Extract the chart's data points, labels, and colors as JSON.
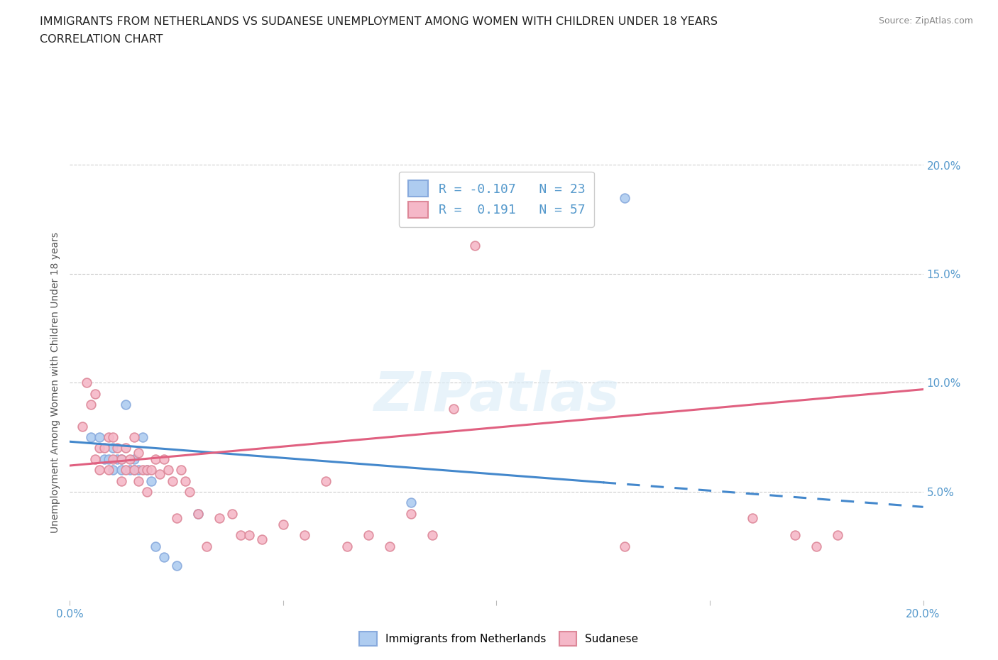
{
  "title_line1": "IMMIGRANTS FROM NETHERLANDS VS SUDANESE UNEMPLOYMENT AMONG WOMEN WITH CHILDREN UNDER 18 YEARS",
  "title_line2": "CORRELATION CHART",
  "source": "Source: ZipAtlas.com",
  "ylabel": "Unemployment Among Women with Children Under 18 years",
  "xlim": [
    0.0,
    0.2
  ],
  "ylim": [
    0.0,
    0.2
  ],
  "xticks": [
    0.0,
    0.05,
    0.1,
    0.15,
    0.2
  ],
  "yticks": [
    0.05,
    0.1,
    0.15,
    0.2
  ],
  "watermark": "ZIPatlas",
  "legend_r1": "R = -0.107   N = 23",
  "legend_r2": "R =  0.191   N = 57",
  "netherlands_color": "#aeccf0",
  "netherlands_edge_color": "#88aadd",
  "sudanese_color": "#f5b8c8",
  "sudanese_edge_color": "#dd8899",
  "netherlands_line_color": "#4488cc",
  "sudanese_line_color": "#e06080",
  "netherlands_scatter_x": [
    0.005,
    0.007,
    0.008,
    0.009,
    0.01,
    0.01,
    0.011,
    0.012,
    0.012,
    0.013,
    0.014,
    0.015,
    0.015,
    0.016,
    0.017,
    0.018,
    0.019,
    0.02,
    0.022,
    0.025,
    0.03,
    0.08,
    0.13
  ],
  "netherlands_scatter_y": [
    0.075,
    0.075,
    0.065,
    0.065,
    0.07,
    0.06,
    0.065,
    0.065,
    0.06,
    0.09,
    0.06,
    0.065,
    0.06,
    0.06,
    0.075,
    0.06,
    0.055,
    0.025,
    0.02,
    0.016,
    0.04,
    0.045,
    0.185
  ],
  "sudanese_scatter_x": [
    0.003,
    0.004,
    0.005,
    0.006,
    0.006,
    0.007,
    0.007,
    0.008,
    0.009,
    0.009,
    0.01,
    0.01,
    0.011,
    0.012,
    0.012,
    0.013,
    0.013,
    0.014,
    0.015,
    0.015,
    0.016,
    0.016,
    0.017,
    0.018,
    0.018,
    0.019,
    0.02,
    0.021,
    0.022,
    0.023,
    0.024,
    0.025,
    0.026,
    0.027,
    0.028,
    0.03,
    0.032,
    0.035,
    0.038,
    0.04,
    0.042,
    0.045,
    0.05,
    0.055,
    0.06,
    0.065,
    0.07,
    0.075,
    0.08,
    0.085,
    0.09,
    0.095,
    0.13,
    0.16,
    0.17,
    0.175,
    0.18
  ],
  "sudanese_scatter_y": [
    0.08,
    0.1,
    0.09,
    0.095,
    0.065,
    0.07,
    0.06,
    0.07,
    0.075,
    0.06,
    0.075,
    0.065,
    0.07,
    0.065,
    0.055,
    0.07,
    0.06,
    0.065,
    0.075,
    0.06,
    0.055,
    0.068,
    0.06,
    0.06,
    0.05,
    0.06,
    0.065,
    0.058,
    0.065,
    0.06,
    0.055,
    0.038,
    0.06,
    0.055,
    0.05,
    0.04,
    0.025,
    0.038,
    0.04,
    0.03,
    0.03,
    0.028,
    0.035,
    0.03,
    0.055,
    0.025,
    0.03,
    0.025,
    0.04,
    0.03,
    0.088,
    0.163,
    0.025,
    0.038,
    0.03,
    0.025,
    0.03
  ],
  "netherlands_trend_y_start": 0.073,
  "netherlands_trend_y_end": 0.043,
  "netherlands_trend_solid_end": 0.125,
  "sudanese_trend_y_start": 0.062,
  "sudanese_trend_y_end": 0.097,
  "grid_color": "#cccccc",
  "background_color": "#ffffff",
  "title_color": "#222222",
  "axis_color": "#5599cc",
  "marker_size": 85
}
